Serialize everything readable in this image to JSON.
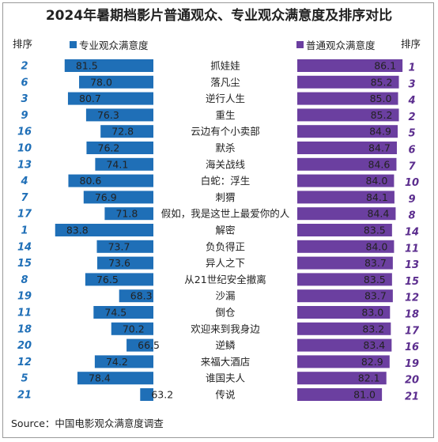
{
  "chart_data": {
    "type": "bar",
    "title": "2024年暑期档影片普通观众、专业观众满意度及排序对比",
    "rank_header_left": "排序",
    "rank_header_right": "排序",
    "source": "Source：中国电影观众满意度调查",
    "colors": {
      "professional": "#1f6fb7",
      "general": "#6b3fa0",
      "rank_left": "#1f6fb7",
      "rank_right": "#5b2d8e"
    },
    "series": [
      {
        "name": "专业观众满意度",
        "side": "left"
      },
      {
        "name": "普通观众满意度",
        "side": "right"
      }
    ],
    "categories": [
      "抓娃娃",
      "落凡尘",
      "逆行人生",
      "重生",
      "云边有个小卖部",
      "默杀",
      "海关战线",
      "白蛇：浮生",
      "刺猬",
      "假如，我是这世上最爱你的人",
      "解密",
      "负负得正",
      "异人之下",
      "从21世纪安全撤离",
      "沙漏",
      "倒仓",
      "欢迎来到我身边",
      "逆鳞",
      "来福大酒店",
      "谁国夫人",
      "传说"
    ],
    "professional_values": [
      81.5,
      78.0,
      80.7,
      76.3,
      72.8,
      76.2,
      74.1,
      80.6,
      76.9,
      71.8,
      83.8,
      73.7,
      73.6,
      76.5,
      68.3,
      74.5,
      70.2,
      66.5,
      74.2,
      78.4,
      63.2
    ],
    "professional_labels": [
      "81.5",
      "78.0",
      "80.7",
      "76.3",
      "72.8",
      "76.2",
      "74.1",
      "80.6",
      "76.9",
      "71.8",
      "83.8",
      "73.7",
      "73.6",
      "76.5",
      "68.3",
      "74.5",
      "70.2",
      "66.5",
      "74.2",
      "78.4",
      "63.2"
    ],
    "professional_ranks": [
      "2",
      "6",
      "3",
      "9",
      "16",
      "10",
      "13",
      "4",
      "7",
      "17",
      "1",
      "14",
      "15",
      "8",
      "19",
      "11",
      "18",
      "20",
      "12",
      "5",
      "21"
    ],
    "general_values": [
      86.1,
      85.2,
      85.0,
      85.2,
      84.9,
      84.7,
      84.6,
      84.0,
      84.1,
      84.4,
      83.5,
      84.0,
      83.7,
      83.5,
      83.7,
      83.0,
      83.2,
      83.4,
      82.9,
      82.1,
      81.0
    ],
    "general_labels": [
      "86.1",
      "85.2",
      "85.0",
      "85.2",
      "84.9",
      "84.7",
      "84.6",
      "84.0",
      "84.1",
      "84.4",
      "83.5",
      "84.0",
      "83.7",
      "83.5",
      "83.7",
      "83.0",
      "83.2",
      "83.4",
      "82.9",
      "82.1",
      "81.0"
    ],
    "general_ranks": [
      "1",
      "3",
      "4",
      "2",
      "5",
      "6",
      "7",
      "10",
      "9",
      "8",
      "14",
      "11",
      "13",
      "15",
      "12",
      "18",
      "17",
      "16",
      "19",
      "20",
      "21"
    ]
  }
}
